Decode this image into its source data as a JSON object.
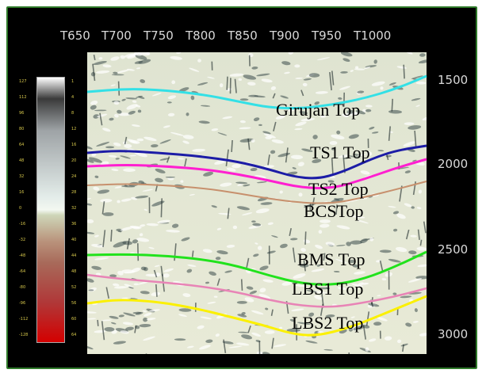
{
  "x_axis_labels": [
    "T650",
    "T700",
    "T750",
    "T800",
    "T850",
    "T900",
    "T950",
    "T1000"
  ],
  "y_axis_labels": [
    "1500",
    "2000",
    "2500",
    "3000"
  ],
  "horizons": [
    {
      "label": "Girujan Top",
      "color": "#33e0e6"
    },
    {
      "label": "TS1 Top",
      "color": "#1c1ca6"
    },
    {
      "label": "TS2 Top",
      "color": "#ff1fd0"
    },
    {
      "label": "BCSTop",
      "color": "#c7906d"
    },
    {
      "label": "BMS Top",
      "color": "#21e21c"
    },
    {
      "label": "LBS1 Top",
      "color": "#e884b6"
    },
    {
      "label": "LBS2 Top",
      "color": "#fbf000"
    }
  ],
  "colorbar": {
    "left_values": [
      "127",
      "112",
      "96",
      "80",
      "64",
      "48",
      "32",
      "16",
      "0",
      "-16",
      "-32",
      "-48",
      "-64",
      "-80",
      "-96",
      "-112",
      "-128"
    ],
    "right_values": [
      "1",
      "4",
      "8",
      "12",
      "16",
      "20",
      "24",
      "28",
      "32",
      "36",
      "40",
      "44",
      "48",
      "52",
      "56",
      "60",
      "64"
    ]
  }
}
